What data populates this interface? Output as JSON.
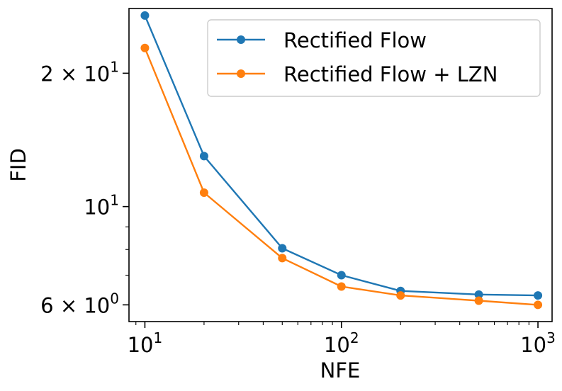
{
  "chart_data": {
    "type": "line",
    "title": "",
    "xlabel": "NFE",
    "ylabel": "FID",
    "xscale": "log",
    "yscale": "log",
    "xlim": [
      8.3,
      1180
    ],
    "ylim": [
      5.5,
      28
    ],
    "x": [
      10,
      20,
      50,
      100,
      200,
      500,
      1000
    ],
    "series": [
      {
        "name": "Rectified Flow",
        "color": "#1f77b4",
        "values": [
          27.0,
          13.0,
          8.05,
          7.0,
          6.45,
          6.33,
          6.3
        ]
      },
      {
        "name": "Rectified Flow + LZN",
        "color": "#ff7f0e",
        "values": [
          22.8,
          10.75,
          7.65,
          6.6,
          6.3,
          6.13,
          6.0
        ]
      }
    ],
    "x_ticks": [
      {
        "value": 10,
        "base": "10",
        "exp": "1"
      },
      {
        "value": 100,
        "base": "10",
        "exp": "2"
      },
      {
        "value": 1000,
        "base": "10",
        "exp": "3"
      }
    ],
    "y_ticks": [
      {
        "value": 6,
        "base": "6 × 10",
        "exp": "0"
      },
      {
        "value": 10,
        "base": "10",
        "exp": "1"
      },
      {
        "value": 20,
        "base": "2 × 10",
        "exp": "1"
      }
    ],
    "legend_position": "top-right",
    "grid": false
  }
}
